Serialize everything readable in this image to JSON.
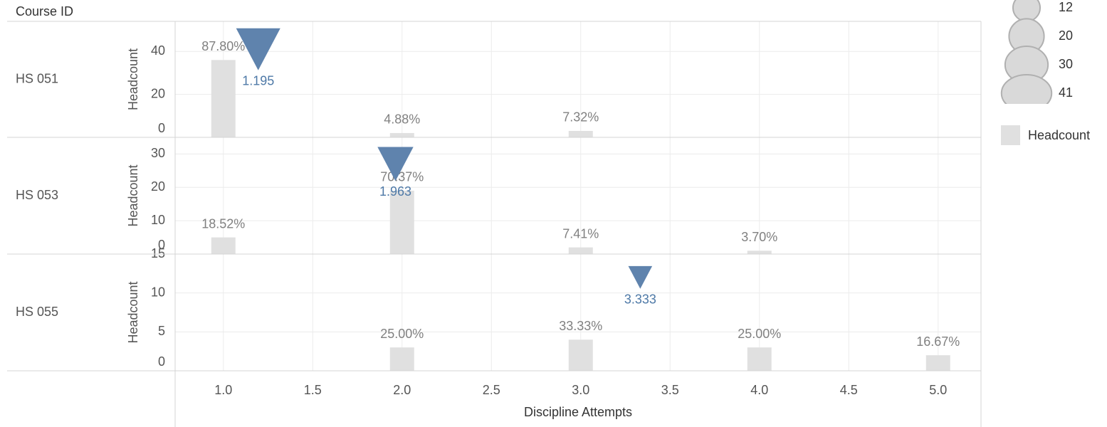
{
  "row_header": "Course ID",
  "x_axis": {
    "label": "Discipline Attempts",
    "xlim": [
      0.73,
      5.24
    ],
    "xticks": [
      {
        "value": 1,
        "label": "1.0"
      },
      {
        "value": 1.5,
        "label": "1.5"
      },
      {
        "value": 2,
        "label": "2.0"
      },
      {
        "value": 2.5,
        "label": "2.5"
      },
      {
        "value": 3,
        "label": "3.0"
      },
      {
        "value": 3.5,
        "label": "3.5"
      },
      {
        "value": 4,
        "label": "4.0"
      },
      {
        "value": 4.5,
        "label": "4.5"
      },
      {
        "value": 5,
        "label": "5.0"
      }
    ]
  },
  "color_legend": {
    "label": "Headcount",
    "color": "#e0e0e0"
  },
  "size_legend": {
    "values": [
      12,
      20,
      30,
      41
    ]
  },
  "chart_data": [
    {
      "type": "bar",
      "facet": "HS 051",
      "ylabel": "Headcount",
      "ylim": [
        0,
        54
      ],
      "yticks": [
        0,
        20,
        40
      ],
      "x": [
        1,
        2,
        3
      ],
      "values": [
        36,
        2,
        3
      ],
      "value_labels": [
        "87.80%",
        "4.88%",
        "7.32%"
      ],
      "mean": {
        "color": "#5f83ad",
        "x": [
          1.195
        ],
        "values": [
          41
        ],
        "sizes": [
          41
        ]
      }
    },
    {
      "type": "bar",
      "facet": "HS 053",
      "ylabel": "Headcount",
      "ylim": [
        0,
        35
      ],
      "yticks": [
        0,
        10,
        20,
        30
      ],
      "x": [
        1,
        2,
        3,
        4
      ],
      "values": [
        5,
        19,
        2,
        1
      ],
      "value_labels": [
        "18.52%",
        "70.37%",
        "7.41%",
        "3.70%"
      ],
      "mean": {
        "color": "#5f83ad",
        "x": [
          1.963
        ],
        "values": [
          27
        ],
        "sizes": [
          27
        ]
      }
    },
    {
      "type": "bar",
      "facet": "HS 055",
      "ylabel": "Headcount",
      "ylim": [
        0,
        15
      ],
      "yticks": [
        0,
        5,
        10,
        15
      ],
      "x": [
        2,
        3,
        4,
        5
      ],
      "values": [
        3,
        4,
        3,
        2
      ],
      "value_labels": [
        "25.00%",
        "33.33%",
        "25.00%",
        "16.67%"
      ],
      "mean": {
        "color": "#5f83ad",
        "x": [
          3.333
        ],
        "values": [
          12
        ],
        "sizes": [
          12
        ]
      }
    }
  ]
}
